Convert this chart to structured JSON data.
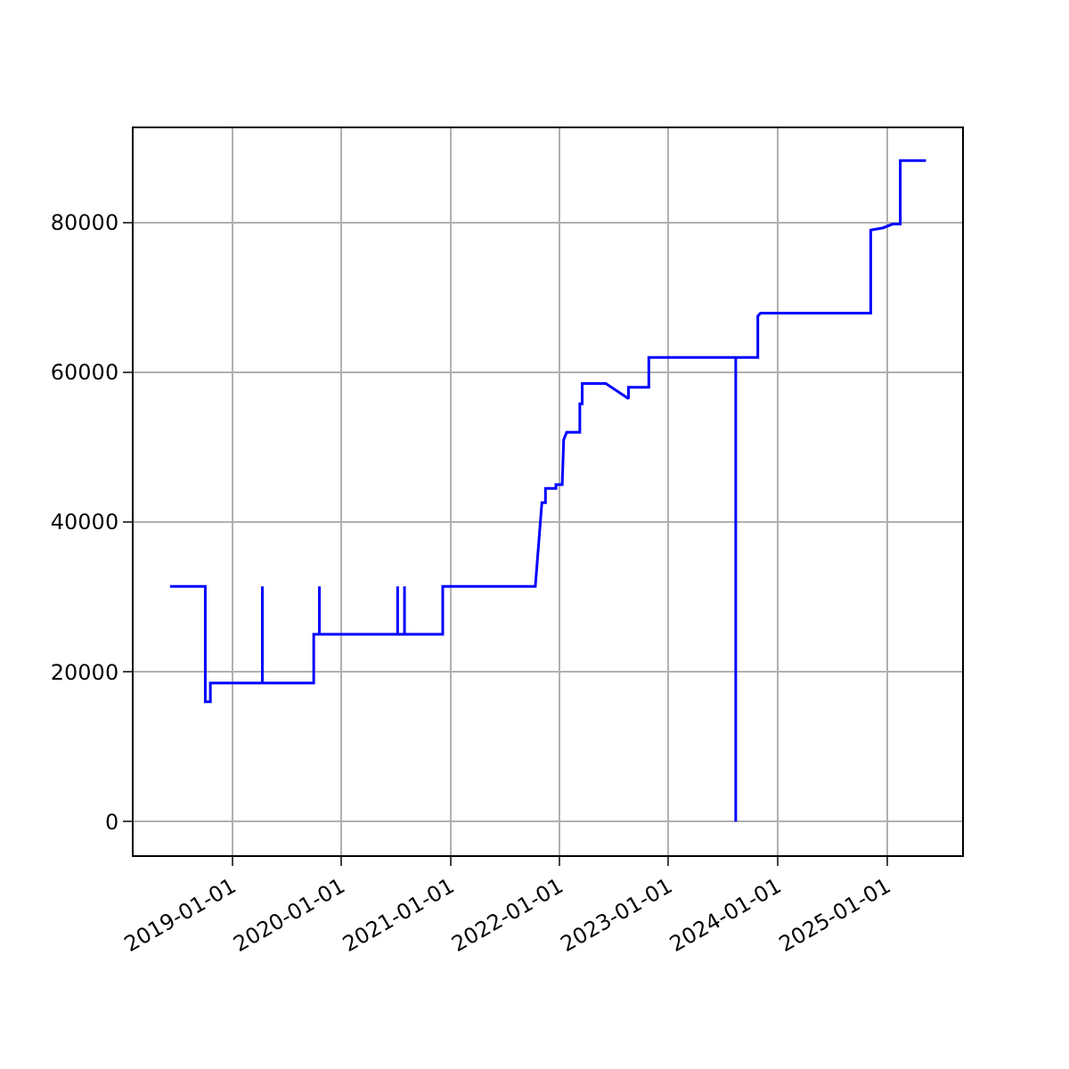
{
  "chart_data": {
    "type": "line",
    "x": [
      "2018-06-07",
      "2018-10-03",
      "2018-10-03",
      "2018-10-20",
      "2018-10-20",
      "2019-04-12",
      "2019-04-12",
      "2019-04-12",
      "2019-10-01",
      "2019-10-01",
      "2019-10-20",
      "2019-10-20",
      "2019-10-20",
      "2020-07-08",
      "2020-07-08",
      "2020-07-08",
      "2020-07-31",
      "2020-07-31",
      "2020-07-31",
      "2020-12-06",
      "2020-12-06",
      "2021-10-12",
      "2021-11-03",
      "2021-11-15",
      "2021-11-15",
      "2021-12-20",
      "2021-12-20",
      "2022-01-10",
      "2022-01-15",
      "2022-01-25",
      "2022-03-10",
      "2022-03-10",
      "2022-03-18",
      "2022-03-18",
      "2022-06-05",
      "2022-08-20",
      "2022-08-20",
      "2022-10-27",
      "2022-10-27",
      "2023-08-14",
      "2023-08-14",
      "2023-08-14",
      "2023-10-27",
      "2023-10-27",
      "2023-11-05",
      "2024-11-08",
      "2024-11-08",
      "2024-12-20",
      "2025-01-20",
      "2025-02-15",
      "2025-02-15",
      "2025-05-12"
    ],
    "series": [
      {
        "color": "#0000ff",
        "values": [
          31400,
          31400,
          16000,
          16000,
          18500,
          18500,
          31400,
          18500,
          18500,
          25000,
          25000,
          31400,
          25000,
          25000,
          31400,
          25000,
          25000,
          31400,
          25000,
          25000,
          31400,
          31400,
          42600,
          42600,
          44500,
          44500,
          45000,
          45000,
          51000,
          52000,
          52000,
          55800,
          55800,
          58500,
          58500,
          56500,
          58000,
          58000,
          62000,
          62000,
          0,
          62000,
          62000,
          67500,
          67900,
          67900,
          79000,
          79300,
          79800,
          79800,
          88300,
          88300
        ]
      }
    ],
    "xlim": [
      "2018-02-05",
      "2025-09-10"
    ],
    "xticks": [
      "2019-01-01",
      "2020-01-01",
      "2021-01-01",
      "2022-01-01",
      "2023-01-01",
      "2024-01-01",
      "2025-01-01"
    ],
    "ylim": [
      -4500,
      92600
    ],
    "yticks": [
      0,
      20000,
      40000,
      60000,
      80000
    ],
    "grid": true,
    "marker": "none",
    "line_style": "solid"
  }
}
